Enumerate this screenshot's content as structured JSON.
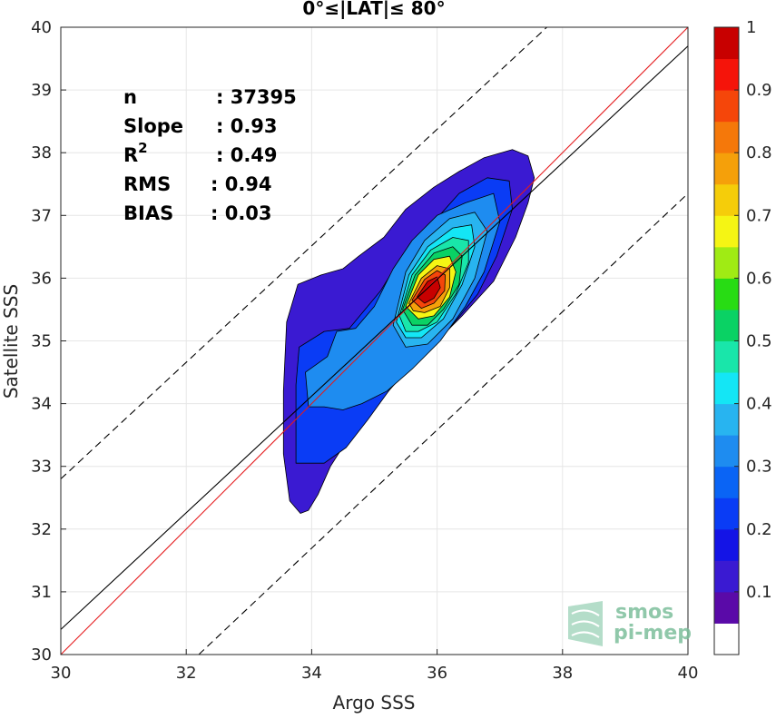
{
  "chart_data": {
    "type": "contour",
    "title": "0°≤|LAT|≤ 80°",
    "xlabel": "Argo SSS",
    "ylabel": "Satellite SSS",
    "xlim": [
      30,
      40
    ],
    "ylim": [
      30,
      40
    ],
    "x_ticks": [
      "30",
      "32",
      "34",
      "36",
      "38",
      "40"
    ],
    "y_ticks": [
      "30",
      "31",
      "32",
      "33",
      "34",
      "35",
      "36",
      "37",
      "38",
      "39",
      "40"
    ],
    "grid": true,
    "stats": [
      {
        "label": "n",
        "value": ": 37395"
      },
      {
        "label": "Slope",
        "value": ": 0.93"
      },
      {
        "label": "R",
        "sup": "2",
        "value": ": 0.49"
      },
      {
        "label": "RMS",
        "value": ": 0.94"
      },
      {
        "label": "BIAS",
        "value": ": 0.03"
      }
    ],
    "lines": [
      {
        "name": "one-to-one",
        "color": "#e41a1c",
        "dash": false,
        "points": [
          [
            30,
            30
          ],
          [
            40,
            40
          ]
        ]
      },
      {
        "name": "regression",
        "color": "#000000",
        "dash": false,
        "points": [
          [
            30,
            30.4
          ],
          [
            40,
            39.7
          ]
        ]
      },
      {
        "name": "upper-bound",
        "color": "#000000",
        "dash": true,
        "points": [
          [
            30,
            32.8
          ],
          [
            37.75,
            40
          ]
        ]
      },
      {
        "name": "lower-bound",
        "color": "#000000",
        "dash": true,
        "points": [
          [
            32.2,
            30
          ],
          [
            40,
            37.35
          ]
        ]
      }
    ],
    "colorbar": {
      "ticks": [
        "0.1",
        "0.2",
        "0.3",
        "0.4",
        "0.5",
        "0.6",
        "0.7",
        "0.8",
        "0.9",
        "1"
      ],
      "levels": [
        0,
        0.05,
        0.1,
        0.15,
        0.2,
        0.25,
        0.3,
        0.35,
        0.4,
        0.45,
        0.5,
        0.55,
        0.6,
        0.65,
        0.7,
        0.75,
        0.8,
        0.85,
        0.9,
        0.95,
        1.0
      ],
      "colors": [
        "#ffffff",
        "#5a0aa8",
        "#3a1ad2",
        "#1414e6",
        "#0a3cf5",
        "#0a64f5",
        "#1e8cf0",
        "#28b4f0",
        "#14e6f5",
        "#19e6aa",
        "#0ad264",
        "#28dc14",
        "#a0eb14",
        "#f5f514",
        "#f5cd0a",
        "#f5a00a",
        "#f5780a",
        "#f5460a",
        "#f5140a",
        "#c80000",
        "#820000"
      ]
    },
    "contours": [
      {
        "level": 0.05,
        "color": "#3a1ad2",
        "points": [
          [
            33.82,
            32.25
          ],
          [
            33.65,
            32.45
          ],
          [
            33.55,
            33.2
          ],
          [
            33.55,
            34.2
          ],
          [
            33.6,
            35.3
          ],
          [
            33.78,
            35.9
          ],
          [
            34.15,
            36.05
          ],
          [
            34.5,
            36.15
          ],
          [
            34.75,
            36.35
          ],
          [
            35.15,
            36.65
          ],
          [
            35.5,
            37.1
          ],
          [
            35.95,
            37.45
          ],
          [
            36.35,
            37.7
          ],
          [
            36.75,
            37.92
          ],
          [
            37.2,
            38.05
          ],
          [
            37.45,
            37.95
          ],
          [
            37.55,
            37.6
          ],
          [
            37.45,
            37.2
          ],
          [
            37.25,
            36.65
          ],
          [
            36.9,
            35.95
          ],
          [
            36.4,
            35.4
          ],
          [
            35.95,
            34.95
          ],
          [
            35.45,
            34.45
          ],
          [
            35.0,
            33.95
          ],
          [
            34.65,
            33.55
          ],
          [
            34.3,
            33.0
          ],
          [
            34.1,
            32.55
          ],
          [
            33.95,
            32.3
          ]
        ]
      },
      {
        "level": 0.1,
        "color": "#0a3cf5",
        "points": [
          [
            33.75,
            33.05
          ],
          [
            33.75,
            34.3
          ],
          [
            33.8,
            34.9
          ],
          [
            34.2,
            35.15
          ],
          [
            34.6,
            35.2
          ],
          [
            35.1,
            35.8
          ],
          [
            35.5,
            36.45
          ],
          [
            35.95,
            36.9
          ],
          [
            36.35,
            37.35
          ],
          [
            36.8,
            37.6
          ],
          [
            37.15,
            37.55
          ],
          [
            37.2,
            37.1
          ],
          [
            36.95,
            36.35
          ],
          [
            36.65,
            35.75
          ],
          [
            36.2,
            35.2
          ],
          [
            35.75,
            34.75
          ],
          [
            35.3,
            34.3
          ],
          [
            34.9,
            33.75
          ],
          [
            34.55,
            33.3
          ],
          [
            34.2,
            33.05
          ]
        ]
      },
      {
        "level": 0.25,
        "color": "#1e8cf0",
        "points": [
          [
            33.95,
            33.95
          ],
          [
            33.9,
            34.5
          ],
          [
            34.25,
            34.75
          ],
          [
            34.4,
            35.15
          ],
          [
            34.7,
            35.2
          ],
          [
            35.0,
            35.55
          ],
          [
            35.3,
            36.15
          ],
          [
            35.6,
            36.6
          ],
          [
            36.0,
            37.0
          ],
          [
            36.45,
            37.2
          ],
          [
            36.9,
            37.35
          ],
          [
            37.0,
            36.9
          ],
          [
            36.75,
            36.1
          ],
          [
            36.45,
            35.55
          ],
          [
            36.05,
            35.0
          ],
          [
            35.6,
            34.55
          ],
          [
            35.2,
            34.2
          ],
          [
            34.8,
            34.0
          ],
          [
            34.5,
            33.9
          ],
          [
            34.2,
            33.95
          ]
        ]
      },
      {
        "level": 0.35,
        "color": "#28b4f0",
        "points": [
          [
            35.3,
            35.25
          ],
          [
            35.5,
            36.1
          ],
          [
            35.8,
            36.6
          ],
          [
            36.2,
            36.95
          ],
          [
            36.6,
            37.05
          ],
          [
            36.8,
            36.75
          ],
          [
            36.6,
            36.0
          ],
          [
            36.25,
            35.35
          ],
          [
            35.85,
            34.95
          ],
          [
            35.5,
            34.9
          ]
        ]
      },
      {
        "level": 0.4,
        "color": "#14e6f5",
        "points": [
          [
            35.35,
            35.3
          ],
          [
            35.55,
            36.05
          ],
          [
            35.85,
            36.5
          ],
          [
            36.25,
            36.8
          ],
          [
            36.55,
            36.85
          ],
          [
            36.6,
            36.5
          ],
          [
            36.4,
            35.9
          ],
          [
            36.1,
            35.35
          ],
          [
            35.75,
            35.05
          ],
          [
            35.5,
            35.05
          ]
        ]
      },
      {
        "level": 0.45,
        "color": "#19e6aa",
        "points": [
          [
            35.4,
            35.4
          ],
          [
            35.6,
            36.05
          ],
          [
            35.9,
            36.45
          ],
          [
            36.25,
            36.65
          ],
          [
            36.5,
            36.6
          ],
          [
            36.5,
            36.25
          ],
          [
            36.3,
            35.75
          ],
          [
            36.0,
            35.3
          ],
          [
            35.7,
            35.15
          ],
          [
            35.5,
            35.15
          ]
        ]
      },
      {
        "level": 0.5,
        "color": "#0ad264",
        "points": [
          [
            35.45,
            35.5
          ],
          [
            35.65,
            36.05
          ],
          [
            35.95,
            36.4
          ],
          [
            36.25,
            36.5
          ],
          [
            36.4,
            36.35
          ],
          [
            36.35,
            35.9
          ],
          [
            36.1,
            35.5
          ],
          [
            35.85,
            35.25
          ],
          [
            35.6,
            35.25
          ]
        ]
      },
      {
        "level": 0.6,
        "color": "#f5f514",
        "points": [
          [
            35.5,
            35.55
          ],
          [
            35.7,
            36.05
          ],
          [
            35.95,
            36.3
          ],
          [
            36.2,
            36.35
          ],
          [
            36.3,
            36.1
          ],
          [
            36.2,
            35.7
          ],
          [
            35.95,
            35.4
          ],
          [
            35.7,
            35.35
          ]
        ]
      },
      {
        "level": 0.7,
        "color": "#f5a00a",
        "points": [
          [
            35.55,
            35.6
          ],
          [
            35.75,
            36.0
          ],
          [
            36.0,
            36.2
          ],
          [
            36.2,
            36.15
          ],
          [
            36.2,
            35.85
          ],
          [
            36.05,
            35.55
          ],
          [
            35.8,
            35.45
          ],
          [
            35.62,
            35.48
          ]
        ]
      },
      {
        "level": 0.8,
        "color": "#f5460a",
        "points": [
          [
            35.6,
            35.65
          ],
          [
            35.8,
            35.98
          ],
          [
            36.0,
            36.12
          ],
          [
            36.13,
            36.05
          ],
          [
            36.12,
            35.8
          ],
          [
            35.95,
            35.6
          ],
          [
            35.75,
            35.52
          ]
        ]
      },
      {
        "level": 0.9,
        "color": "#c80000",
        "points": [
          [
            35.68,
            35.7
          ],
          [
            35.85,
            35.95
          ],
          [
            36.0,
            36.02
          ],
          [
            36.05,
            35.85
          ],
          [
            35.95,
            35.68
          ],
          [
            35.8,
            35.6
          ]
        ]
      }
    ]
  },
  "watermark": {
    "line1": "smos",
    "line2": "pi-mep"
  }
}
